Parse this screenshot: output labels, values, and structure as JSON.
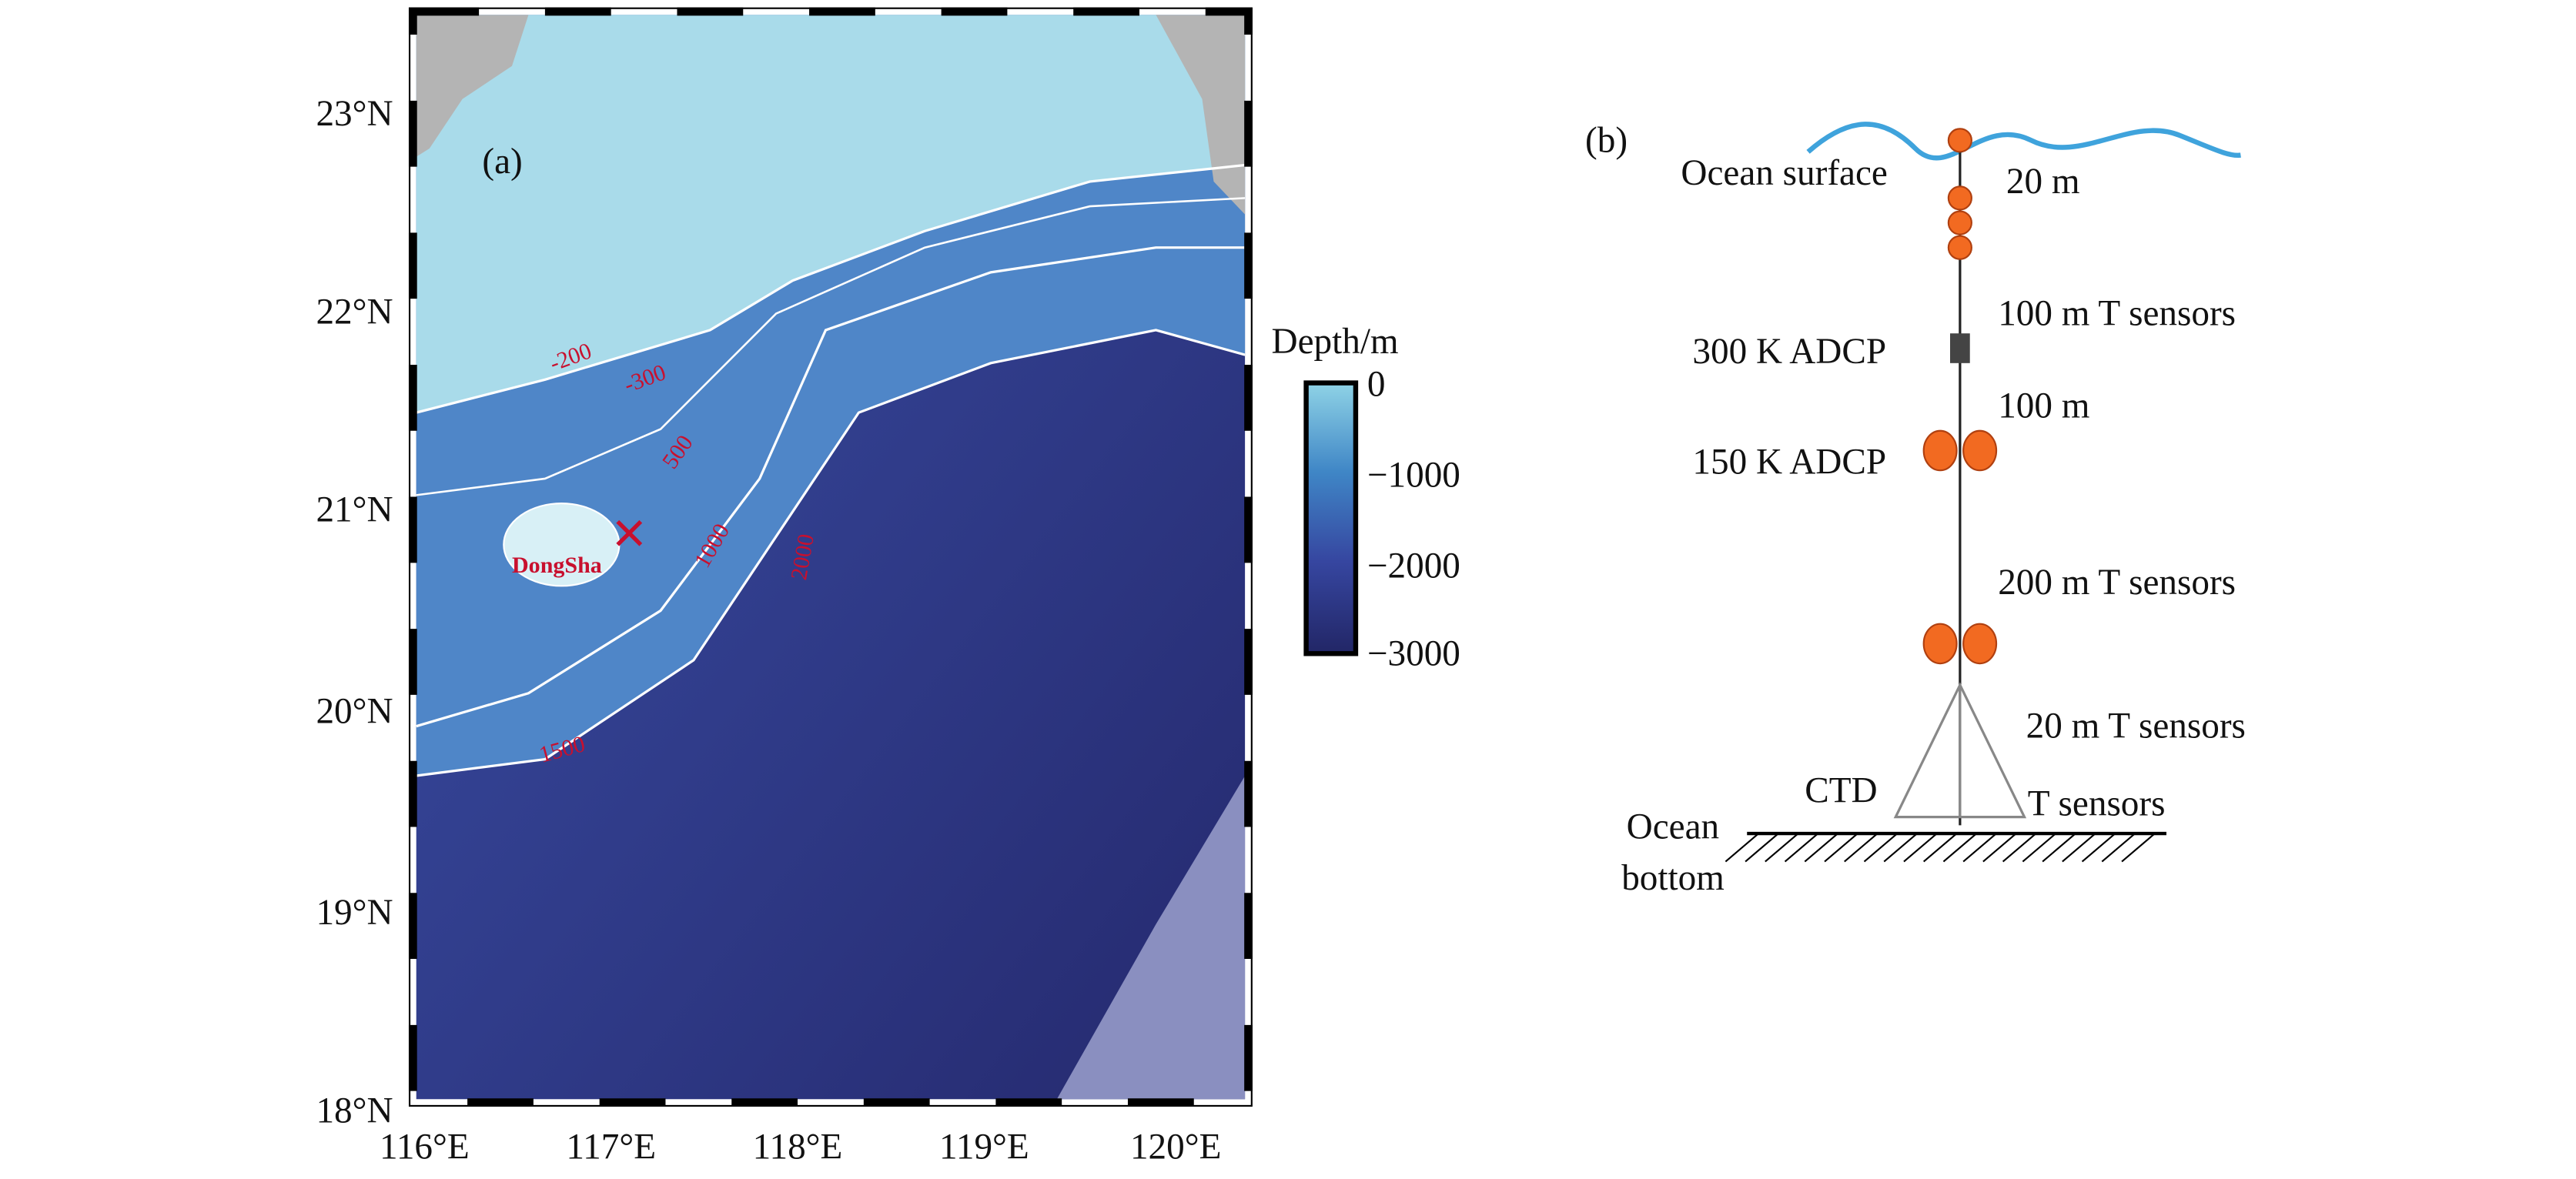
{
  "panel_a": {
    "label": "(a)",
    "lat_ticks": [
      "23°N",
      "22°N",
      "21°N",
      "20°N",
      "19°N",
      "18°N"
    ],
    "lon_ticks": [
      "116°E",
      "117°E",
      "118°E",
      "119°E",
      "120°E"
    ],
    "site": "DongSha",
    "contour_labels": [
      "-200",
      "-300",
      "500",
      "1000",
      "2000",
      "1500"
    ],
    "colorbar": {
      "title": "Depth/m",
      "ticks": [
        "0",
        "−1000",
        "−2000",
        "−3000"
      ]
    }
  },
  "panel_b": {
    "label": "(b)",
    "labels": [
      "Ocean surface",
      "20 m",
      "100 m  T sensors",
      "300 K ADCP",
      "100 m",
      "150 K ADCP",
      "200 m T sensors",
      "20 m T sensors",
      "CTD",
      "T sensors",
      "Ocean",
      "bottom"
    ]
  }
}
